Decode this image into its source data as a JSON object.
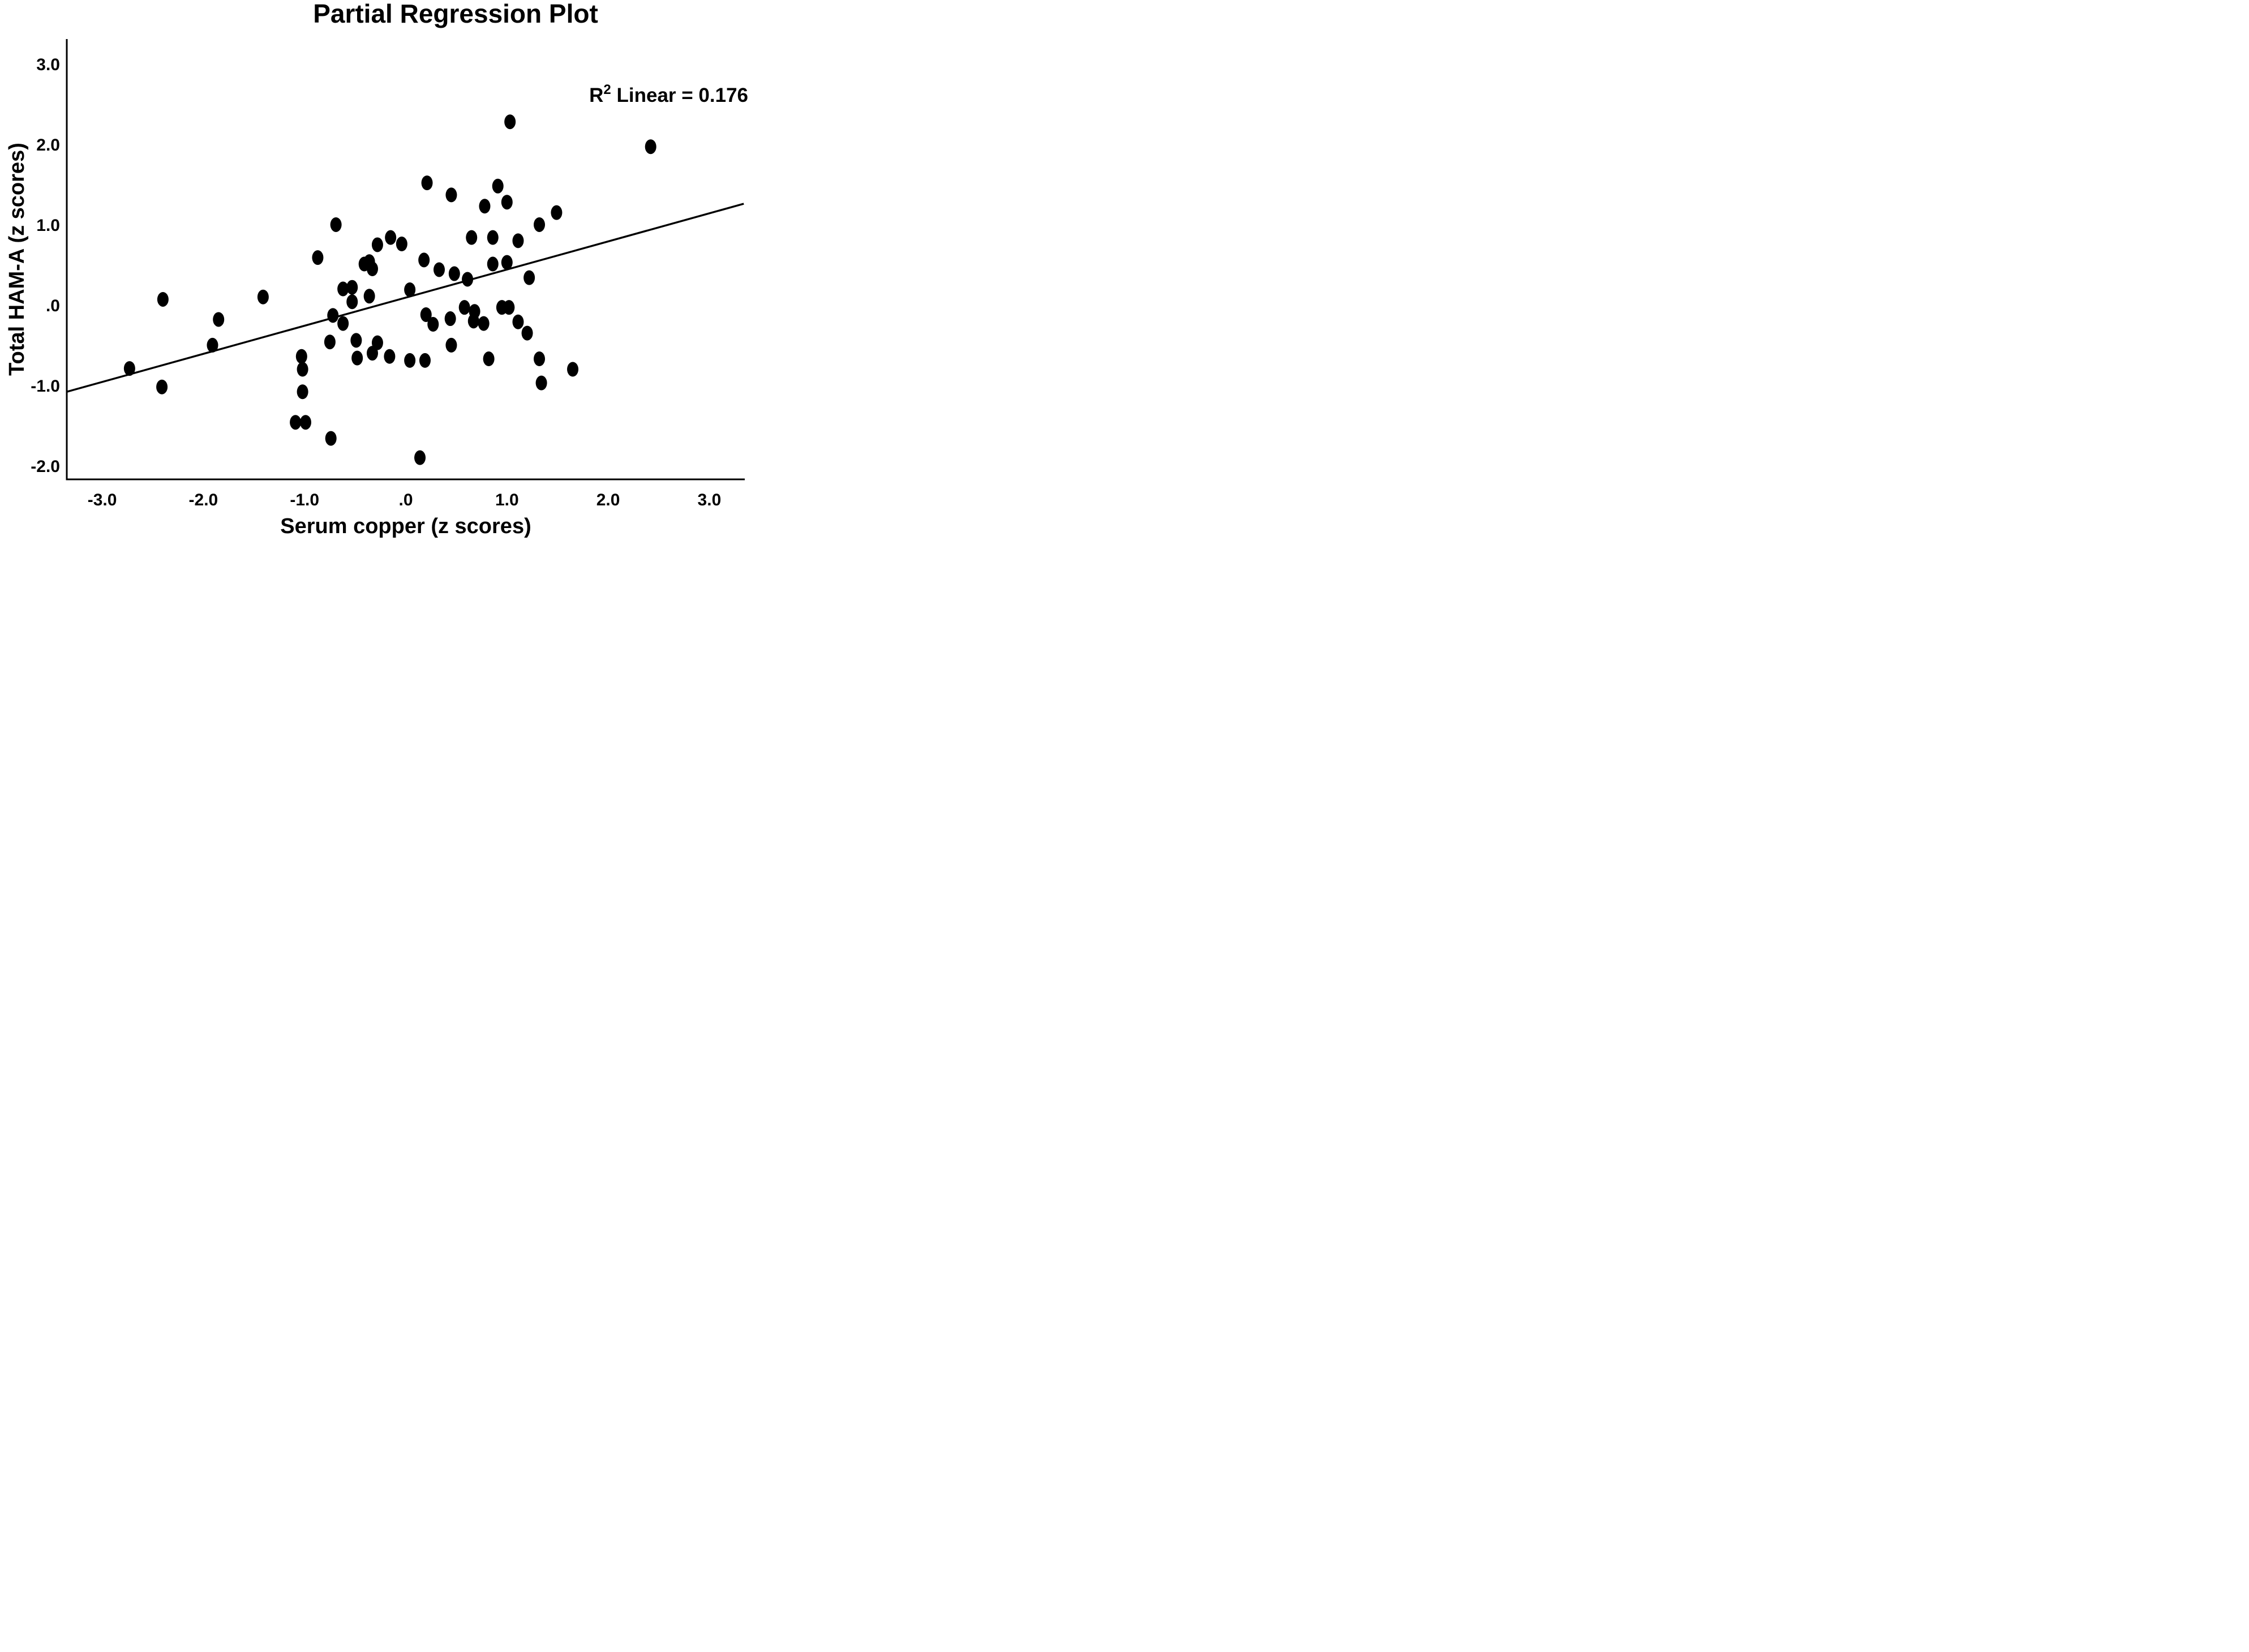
{
  "title": "Partial Regression Plot",
  "annotation": {
    "base": "R",
    "sup": "2",
    "rest": " Linear = 0.176"
  },
  "colors": {
    "foreground": "#000000",
    "background": "#ffffff"
  },
  "chart_data": {
    "type": "scatter",
    "title": "Partial Regression Plot",
    "xlabel": "Serum copper (z scores)",
    "ylabel": "Total HAM-A (z scores)",
    "xlim": [
      -3.35,
      3.35
    ],
    "ylim": [
      -2.17,
      3.31
    ],
    "grid": false,
    "legend": "none",
    "x_ticks": [
      {
        "v": -3,
        "label": "-3.0"
      },
      {
        "v": -2,
        "label": "-2.0"
      },
      {
        "v": -1,
        "label": "-1.0"
      },
      {
        "v": 0,
        "label": ".0"
      },
      {
        "v": 1,
        "label": "1.0"
      },
      {
        "v": 2,
        "label": "2.0"
      },
      {
        "v": 3,
        "label": "3.0"
      }
    ],
    "y_ticks": [
      {
        "v": 3,
        "label": "3.0"
      },
      {
        "v": 2,
        "label": "2.0"
      },
      {
        "v": 1,
        "label": "1.0"
      },
      {
        "v": 0,
        "label": ".0"
      },
      {
        "v": -1,
        "label": "-1.0"
      },
      {
        "v": -2,
        "label": "-2.0"
      }
    ],
    "regression_line": {
      "x1": -3.35,
      "y1": -1.08,
      "x2": 3.34,
      "y2": 1.26
    },
    "r_squared": 0.176,
    "points": [
      [
        -2.73,
        -0.79
      ],
      [
        -2.4,
        0.07
      ],
      [
        -2.41,
        -1.02
      ],
      [
        -1.91,
        -0.5
      ],
      [
        -1.85,
        -0.18
      ],
      [
        -1.41,
        0.1
      ],
      [
        -1.03,
        -0.64
      ],
      [
        -1.02,
        -0.8
      ],
      [
        -1.02,
        -1.08
      ],
      [
        -1.09,
        -1.46
      ],
      [
        -0.99,
        -1.46
      ],
      [
        -0.87,
        0.59
      ],
      [
        -0.75,
        -0.46
      ],
      [
        -0.74,
        -1.66
      ],
      [
        -0.69,
        1.0
      ],
      [
        -0.62,
        0.2
      ],
      [
        -0.53,
        0.22
      ],
      [
        -0.53,
        0.04
      ],
      [
        -0.72,
        -0.13
      ],
      [
        -0.62,
        -0.23
      ],
      [
        -0.49,
        -0.44
      ],
      [
        -0.48,
        -0.66
      ],
      [
        -0.36,
        0.54
      ],
      [
        -0.41,
        0.51
      ],
      [
        -0.33,
        0.45
      ],
      [
        -0.36,
        0.11
      ],
      [
        -0.28,
        0.75
      ],
      [
        -0.28,
        -0.47
      ],
      [
        -0.33,
        -0.6
      ],
      [
        -0.15,
        0.84
      ],
      [
        -0.16,
        -0.64
      ],
      [
        -0.04,
        0.76
      ],
      [
        0.04,
        0.19
      ],
      [
        0.2,
        -0.12
      ],
      [
        0.27,
        -0.24
      ],
      [
        0.04,
        -0.69
      ],
      [
        0.19,
        -0.69
      ],
      [
        0.21,
        1.52
      ],
      [
        0.18,
        0.56
      ],
      [
        0.14,
        -1.9
      ],
      [
        0.33,
        0.44
      ],
      [
        0.48,
        0.39
      ],
      [
        0.45,
        1.37
      ],
      [
        0.45,
        -0.5
      ],
      [
        0.44,
        -0.17
      ],
      [
        0.61,
        0.32
      ],
      [
        0.58,
        -0.03
      ],
      [
        0.68,
        -0.08
      ],
      [
        0.67,
        -0.2
      ],
      [
        0.77,
        -0.23
      ],
      [
        0.82,
        -0.67
      ],
      [
        0.65,
        0.84
      ],
      [
        0.86,
        0.84
      ],
      [
        0.86,
        0.51
      ],
      [
        0.78,
        1.23
      ],
      [
        0.91,
        1.48
      ],
      [
        1.0,
        1.28
      ],
      [
        0.95,
        -0.03
      ],
      [
        1.02,
        -0.03
      ],
      [
        1.0,
        0.53
      ],
      [
        1.11,
        0.8
      ],
      [
        1.11,
        -0.21
      ],
      [
        1.2,
        -0.35
      ],
      [
        1.22,
        0.34
      ],
      [
        1.32,
        1.0
      ],
      [
        1.32,
        -0.67
      ],
      [
        1.34,
        -0.97
      ],
      [
        1.49,
        1.15
      ],
      [
        1.65,
        -0.8
      ],
      [
        1.03,
        2.28
      ],
      [
        2.42,
        1.97
      ]
    ]
  }
}
